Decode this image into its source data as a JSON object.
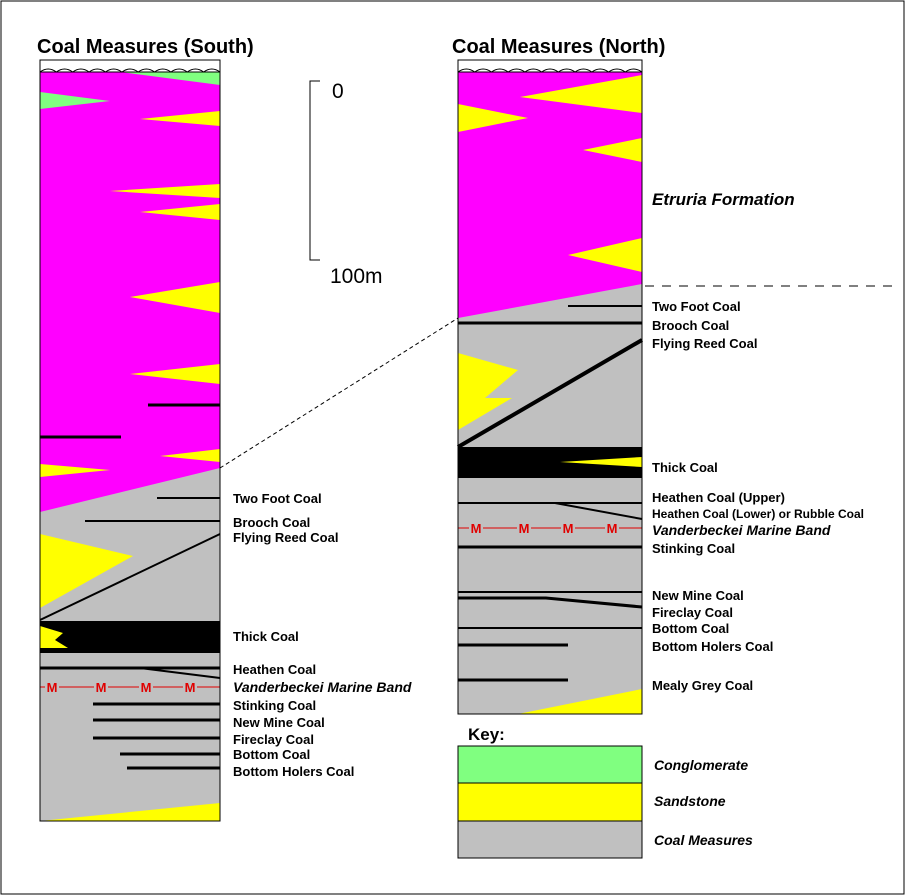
{
  "titles": {
    "south": "Coal Measures (South)",
    "north": "Coal Measures (North)"
  },
  "scale": {
    "top": "0",
    "bottom": "100m"
  },
  "marine_marker": "M",
  "south_labels": {
    "two_foot": "Two Foot Coal",
    "brooch": "Brooch Coal",
    "flying_reed": "Flying Reed Coal",
    "thick": "Thick Coal",
    "heathen": "Heathen Coal",
    "marine_band": "Vanderbeckei Marine Band",
    "stinking": "Stinking Coal",
    "new_mine": "New Mine Coal",
    "fireclay": "Fireclay Coal",
    "bottom": "Bottom Coal",
    "bottom_holers": "Bottom Holers Coal"
  },
  "north_labels": {
    "etruria": "Etruria Formation",
    "two_foot": "Two Foot Coal",
    "brooch": "Brooch Coal",
    "flying_reed": "Flying Reed Coal",
    "thick": "Thick Coal",
    "heathen_upper": "Heathen Coal (Upper)",
    "heathen_lower": "Heathen Coal (Lower) or Rubble Coal",
    "marine_band": "Vanderbeckei Marine Band",
    "stinking": "Stinking Coal",
    "new_mine": "New Mine Coal",
    "fireclay": "Fireclay Coal",
    "bottom": "Bottom Coal",
    "bottom_holers": "Bottom Holers Coal",
    "mealy_grey": "Mealy Grey Coal"
  },
  "key": {
    "title": "Key:",
    "items": [
      {
        "label": "Conglomerate",
        "color": "#80ff80"
      },
      {
        "label": "Sandstone",
        "color": "#ffff00"
      },
      {
        "label": "Coal Measures",
        "color": "#c0c0c0"
      }
    ]
  },
  "colors": {
    "etruria": "#ff00ff",
    "sandstone": "#ffff00",
    "conglomerate": "#80ff80",
    "coal_measures": "#c0c0c0",
    "coal": "#000000",
    "marine": "#e00000"
  }
}
